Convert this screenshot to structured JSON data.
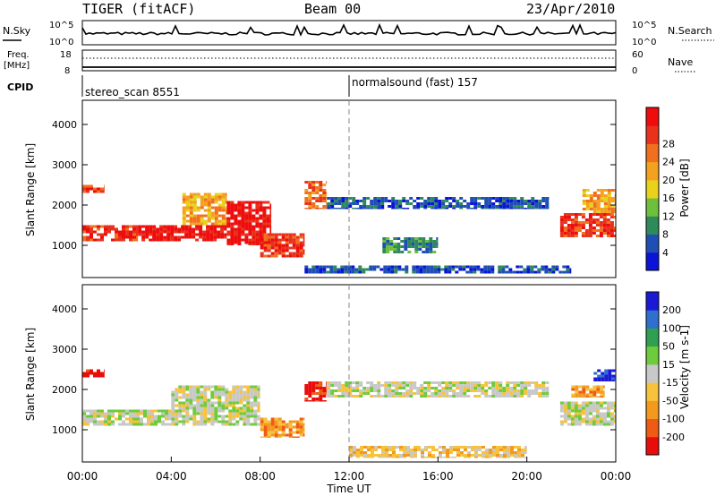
{
  "header": {
    "title": "TIGER (fitACF)",
    "beam": "Beam 00",
    "date": "23/Apr/2010"
  },
  "strips": {
    "nsky_label": "N.Sky",
    "nsky_ticks": [
      "10^5",
      "10^0"
    ],
    "nsearch_label": "N.Search",
    "nsearch_ticks": [
      "10^5",
      "10^0"
    ],
    "freq_label_1": "Freq.",
    "freq_label_2": "[MHz]",
    "freq_ticks": [
      "18",
      "8"
    ],
    "nave_label": "Nave",
    "nave_ticks": [
      "60",
      "0"
    ],
    "cpid_label": "CPID",
    "cpid_segments": [
      {
        "name": "stereo_scan",
        "id": "8551",
        "start_hour": 0
      },
      {
        "name": "normalsound (fast)",
        "id": "157",
        "start_hour": 12
      }
    ]
  },
  "chart_data": [
    {
      "type": "heatmap",
      "panel": "power",
      "ylabel": "Slant Range [km]",
      "x_range_hours": [
        0,
        24
      ],
      "ylim": [
        200,
        4600
      ],
      "y_ticks": [
        1000,
        2000,
        3000,
        4000
      ],
      "colorbar": {
        "label": "Power [dB]",
        "ticks": [
          "4",
          "8",
          "12",
          "16",
          "20",
          "24",
          "28"
        ],
        "colors": [
          "#0a14d8",
          "#1f4fb4",
          "#2e8a5a",
          "#6ec03c",
          "#e8d21c",
          "#f3a11e",
          "#f0701e",
          "#e8321c",
          "#ee0c0c"
        ]
      },
      "regions": [
        {
          "x0": 0.0,
          "x1": 1.0,
          "y0": 2300,
          "y1": 2500,
          "level": 7
        },
        {
          "x0": 0.0,
          "x1": 2.5,
          "y0": 1100,
          "y1": 1500,
          "level": 7
        },
        {
          "x0": 2.5,
          "x1": 6.5,
          "y0": 1100,
          "y1": 1500,
          "level": 8
        },
        {
          "x0": 4.5,
          "x1": 6.5,
          "y0": 1500,
          "y1": 2300,
          "level": 5
        },
        {
          "x0": 6.5,
          "x1": 8.5,
          "y0": 1000,
          "y1": 2100,
          "level": 8
        },
        {
          "x0": 8.0,
          "x1": 10.0,
          "y0": 700,
          "y1": 1300,
          "level": 7
        },
        {
          "x0": 10.0,
          "x1": 11.0,
          "y0": 1900,
          "y1": 2600,
          "level": 6
        },
        {
          "x0": 11.0,
          "x1": 21.0,
          "y0": 1900,
          "y1": 2200,
          "level": 1
        },
        {
          "x0": 13.5,
          "x1": 16.0,
          "y0": 800,
          "y1": 1200,
          "level": 2
        },
        {
          "x0": 10.0,
          "x1": 22.0,
          "y0": 300,
          "y1": 500,
          "level": 1
        },
        {
          "x0": 21.5,
          "x1": 24.0,
          "y0": 1200,
          "y1": 1800,
          "level": 7
        },
        {
          "x0": 22.5,
          "x1": 24.0,
          "y0": 1800,
          "y1": 2400,
          "level": 5
        }
      ]
    },
    {
      "type": "heatmap",
      "panel": "velocity",
      "ylabel": "Slant Range [km]",
      "x_range_hours": [
        0,
        24
      ],
      "ylim": [
        200,
        4600
      ],
      "y_ticks": [
        1000,
        2000,
        3000,
        4000
      ],
      "x_ticks": [
        "00:00",
        "04:00",
        "08:00",
        "12:00",
        "16:00",
        "20:00",
        "00:00"
      ],
      "xlabel": "Time UT",
      "colorbar": {
        "label": "Velocity [m s-1]",
        "ticks": [
          "200",
          "100",
          "50",
          "15",
          "-15",
          "-50",
          "-100",
          "-200"
        ],
        "colors": [
          "#1a1ad6",
          "#2f6fcf",
          "#2fa050",
          "#6ecb3c",
          "#c8c8c8",
          "#f7c23c",
          "#f39a1e",
          "#ef5a14",
          "#e80c0c"
        ]
      },
      "regions": [
        {
          "x0": 0.0,
          "x1": 1.0,
          "y0": 2300,
          "y1": 2500,
          "level": 8
        },
        {
          "x0": 0.0,
          "x1": 4.0,
          "y0": 1100,
          "y1": 1500,
          "level": 4
        },
        {
          "x0": 4.0,
          "x1": 8.0,
          "y0": 1100,
          "y1": 2100,
          "level": 4
        },
        {
          "x0": 8.0,
          "x1": 10.0,
          "y0": 800,
          "y1": 1300,
          "level": 6
        },
        {
          "x0": 10.0,
          "x1": 11.0,
          "y0": 1700,
          "y1": 2200,
          "level": 8
        },
        {
          "x0": 11.0,
          "x1": 21.0,
          "y0": 1800,
          "y1": 2200,
          "level": 4
        },
        {
          "x0": 12.0,
          "x1": 20.0,
          "y0": 300,
          "y1": 600,
          "level": 5
        },
        {
          "x0": 21.5,
          "x1": 24.0,
          "y0": 1100,
          "y1": 1700,
          "level": 4
        },
        {
          "x0": 22.0,
          "x1": 23.5,
          "y0": 1800,
          "y1": 2100,
          "level": 6
        },
        {
          "x0": 23.0,
          "x1": 24.0,
          "y0": 2200,
          "y1": 2500,
          "level": 0
        }
      ]
    }
  ]
}
